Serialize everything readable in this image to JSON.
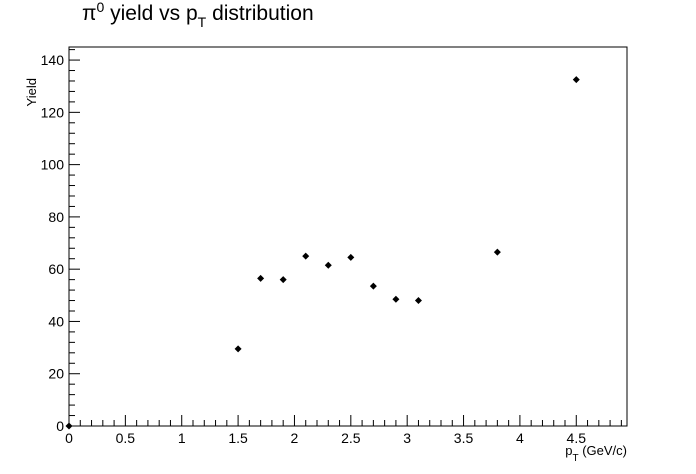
{
  "chart_data": {
    "type": "scatter",
    "title": {
      "main": "π",
      "sup": "0",
      "mid": " yield vs p",
      "sub": "T",
      "tail": " distribution"
    },
    "xlabel": {
      "main": "p",
      "sub": "T",
      "tail": " (GeV/c)"
    },
    "ylabel": "Yield",
    "xlim": [
      0,
      4.95
    ],
    "ylim": [
      0,
      145
    ],
    "x_major_ticks": [
      0,
      0.5,
      1,
      1.5,
      2,
      2.5,
      3,
      3.5,
      4,
      4.5
    ],
    "x_tick_labels": [
      "0",
      "0.5",
      "1",
      "1.5",
      "2",
      "2.5",
      "3",
      "3.5",
      "4",
      "4.5"
    ],
    "y_major_ticks": [
      0,
      20,
      40,
      60,
      80,
      100,
      120,
      140
    ],
    "y_tick_labels": [
      "0",
      "20",
      "40",
      "60",
      "80",
      "100",
      "120",
      "140"
    ],
    "grid": false,
    "marker": "diamond",
    "color": "#000000",
    "points": [
      {
        "x": 0.0,
        "y": 0
      },
      {
        "x": 1.5,
        "y": 29.5
      },
      {
        "x": 1.7,
        "y": 56.5
      },
      {
        "x": 1.9,
        "y": 56
      },
      {
        "x": 2.1,
        "y": 65
      },
      {
        "x": 2.3,
        "y": 61.5
      },
      {
        "x": 2.5,
        "y": 64.5
      },
      {
        "x": 2.7,
        "y": 53.5
      },
      {
        "x": 2.9,
        "y": 48.5
      },
      {
        "x": 3.1,
        "y": 48
      },
      {
        "x": 3.8,
        "y": 66.5
      },
      {
        "x": 4.5,
        "y": 132.5
      }
    ]
  }
}
